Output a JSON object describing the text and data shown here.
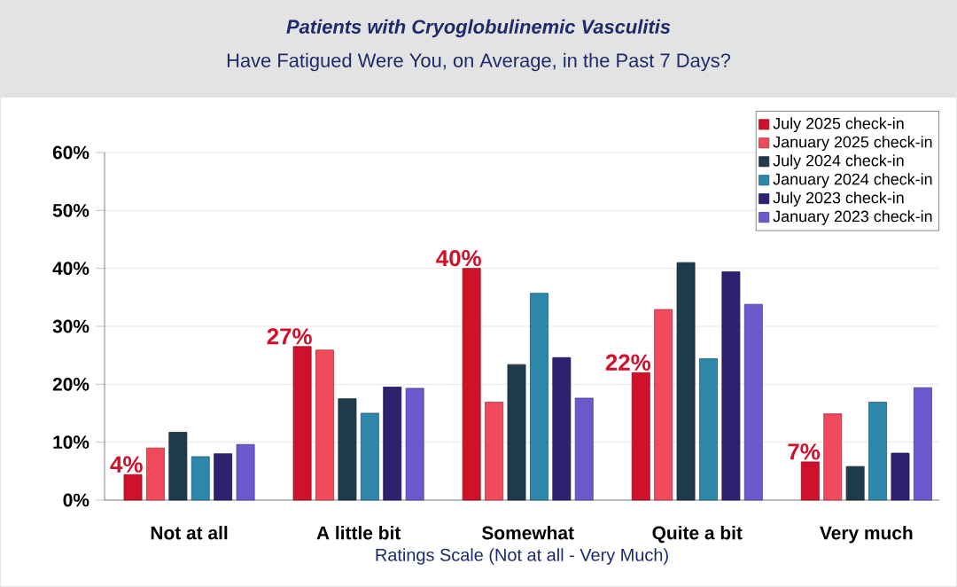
{
  "chart_data": {
    "type": "bar",
    "title": "Patients with Cryoglobulinemic Vasculitis",
    "subtitle": "Have Fatigued Were You, on Average, in the Past 7 Days?",
    "xlabel": "Ratings Scale (Not at all - Very Much)",
    "categories": [
      "Not at all",
      "A little bit",
      "Somewhat",
      "Quite a bit",
      "Very much"
    ],
    "series": [
      {
        "name": "July 2025 check-in",
        "color": "#d0112b",
        "values": [
          4.4,
          26.5,
          40,
          22,
          6.6
        ],
        "value_labels": [
          "4%",
          "27%",
          "40%",
          "22%",
          "7%"
        ]
      },
      {
        "name": "January 2025 check-in",
        "color": "#f04a5c",
        "values": [
          9.0,
          25.9,
          16.9,
          32.9,
          14.9
        ]
      },
      {
        "name": "July 2024 check-in",
        "color": "#1f3a4a",
        "values": [
          11.7,
          17.5,
          23.4,
          41.0,
          5.8
        ]
      },
      {
        "name": "January 2024 check-in",
        "color": "#2e86a8",
        "values": [
          7.5,
          15.0,
          35.7,
          24.4,
          16.9
        ]
      },
      {
        "name": "July 2023 check-in",
        "color": "#2e2170",
        "values": [
          8.0,
          19.5,
          24.6,
          39.4,
          8.1
        ]
      },
      {
        "name": "January 2023 check-in",
        "color": "#6a5acd",
        "values": [
          9.6,
          19.3,
          17.6,
          33.8,
          19.4
        ]
      }
    ],
    "ylim": [
      0,
      60
    ],
    "yticks": [
      {
        "value": 0,
        "label": "0%"
      },
      {
        "value": 10,
        "label": "10%"
      },
      {
        "value": 20,
        "label": "20%"
      },
      {
        "value": 30,
        "label": "30%"
      },
      {
        "value": 40,
        "label": "40%"
      },
      {
        "value": 50,
        "label": "50%"
      },
      {
        "value": 60,
        "label": "60%"
      }
    ],
    "grid": "y",
    "legend": "top right"
  }
}
